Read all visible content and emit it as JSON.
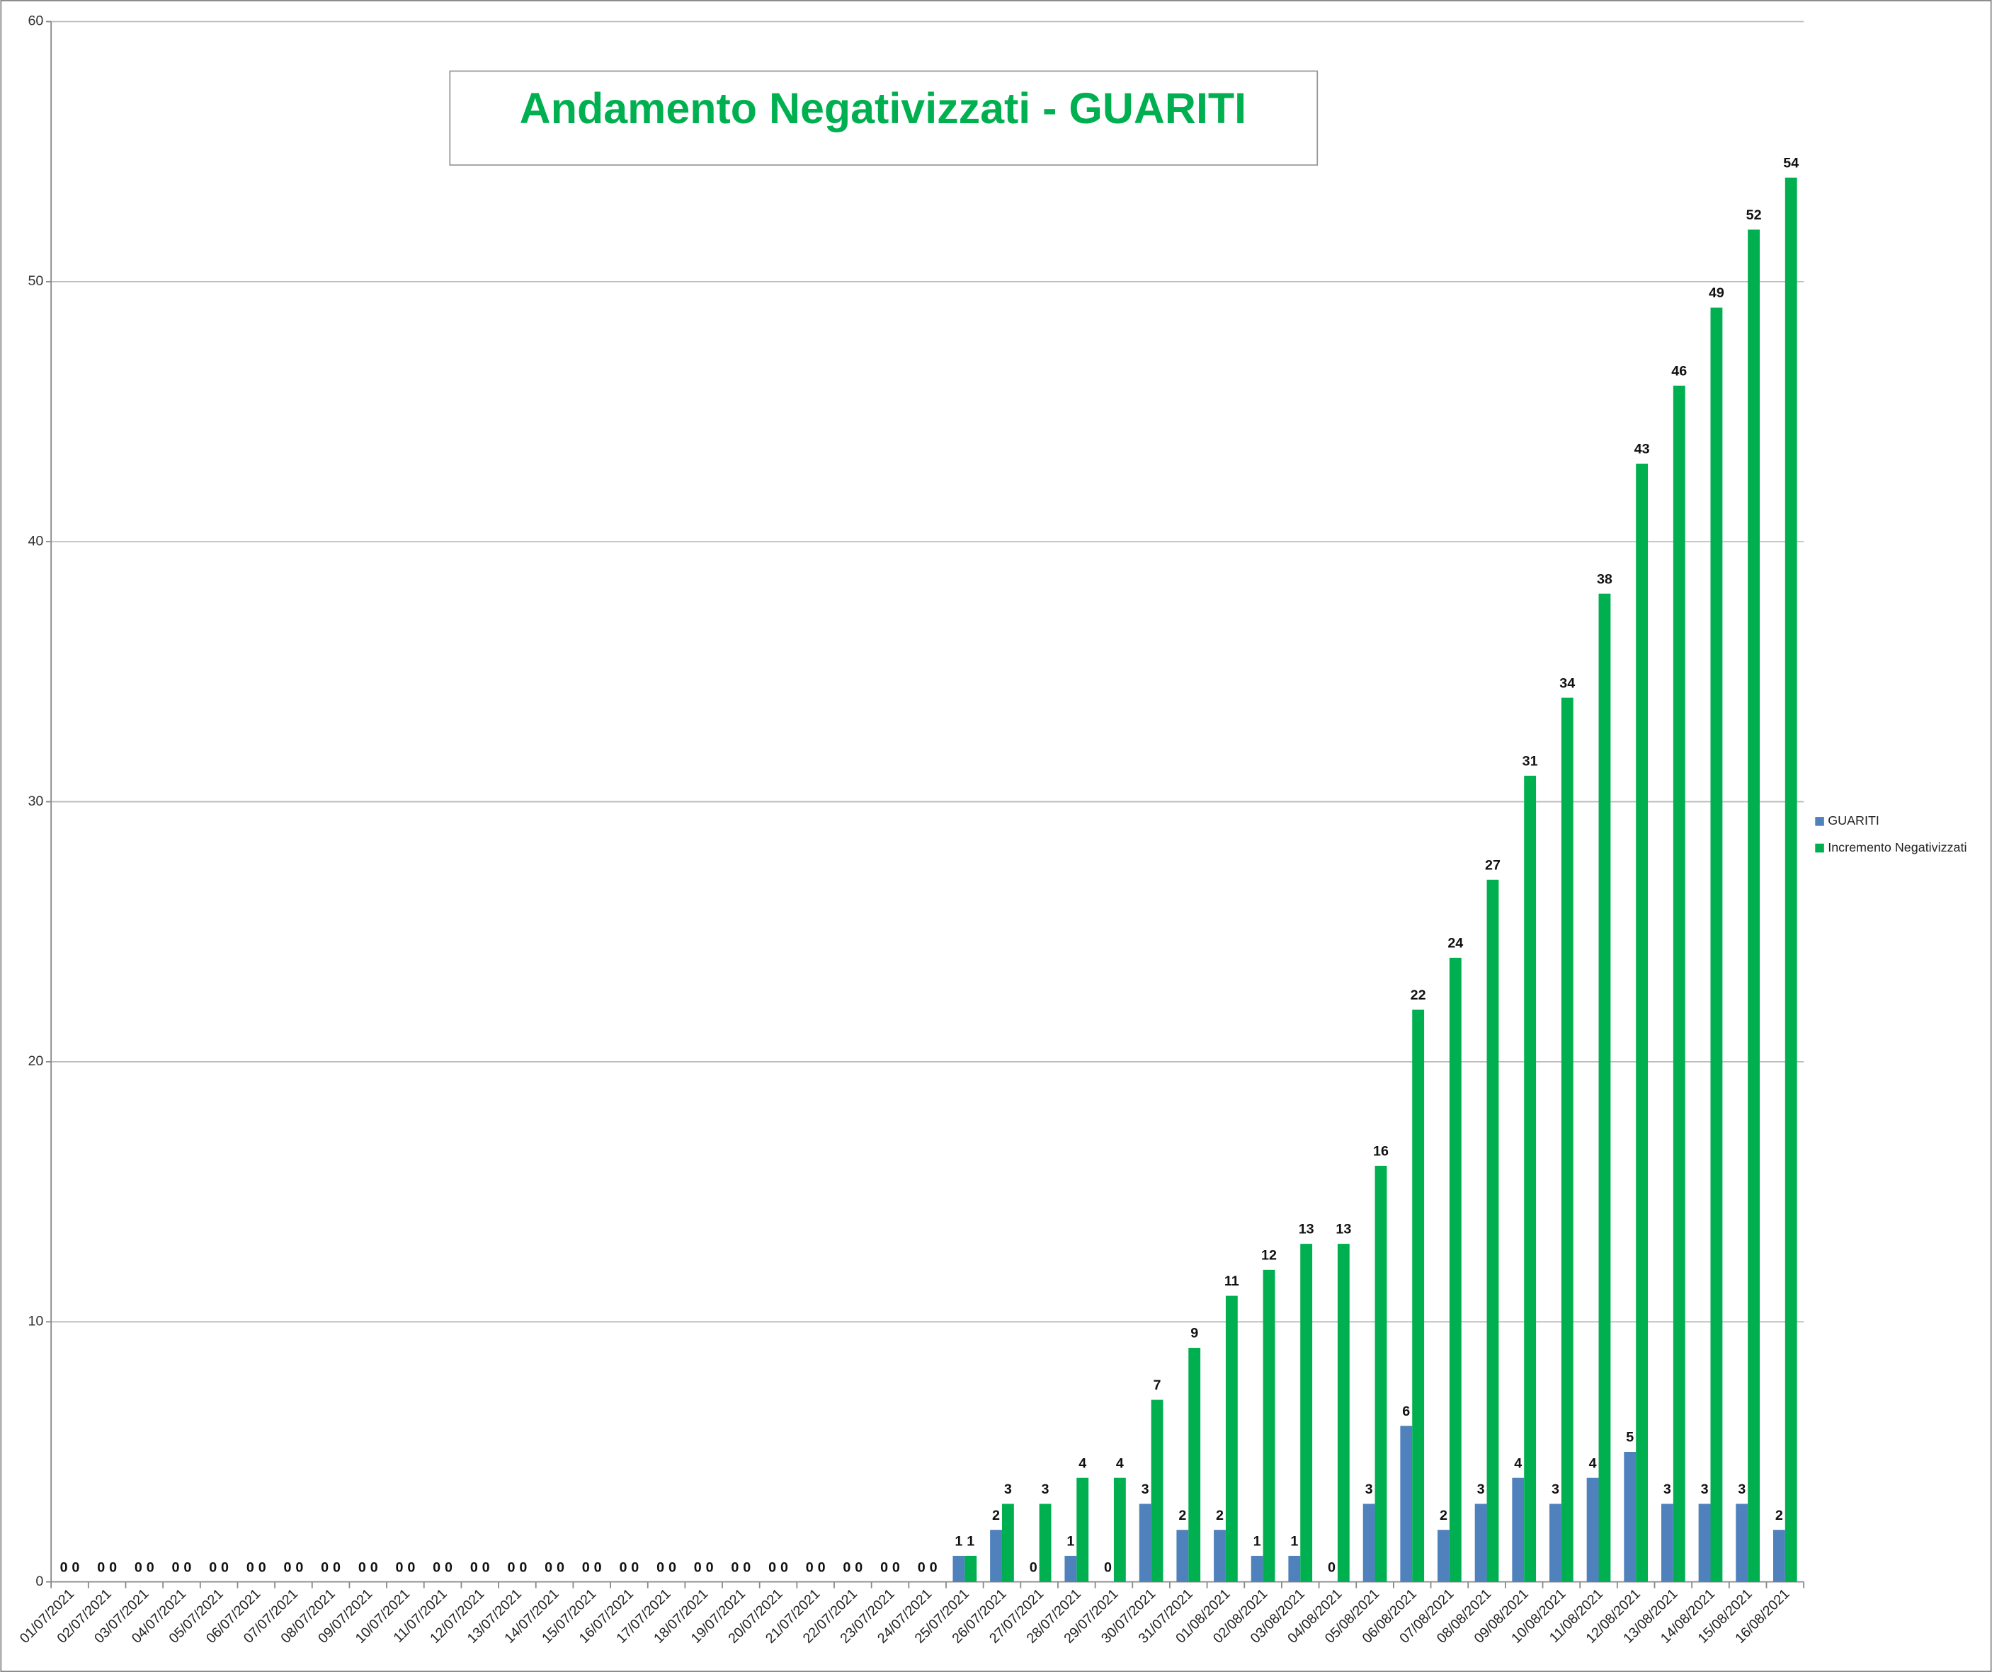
{
  "chart_data": {
    "type": "bar",
    "title": "Andamento Negativizzati - GUARITI",
    "categories": [
      "01/07/2021",
      "02/07/2021",
      "03/07/2021",
      "04/07/2021",
      "05/07/2021",
      "06/07/2021",
      "07/07/2021",
      "08/07/2021",
      "09/07/2021",
      "10/07/2021",
      "11/07/2021",
      "12/07/2021",
      "13/07/2021",
      "14/07/2021",
      "15/07/2021",
      "16/07/2021",
      "17/07/2021",
      "18/07/2021",
      "19/07/2021",
      "20/07/2021",
      "21/07/2021",
      "22/07/2021",
      "23/07/2021",
      "24/07/2021",
      "25/07/2021",
      "26/07/2021",
      "27/07/2021",
      "28/07/2021",
      "29/07/2021",
      "30/07/2021",
      "31/07/2021",
      "01/08/2021",
      "02/08/2021",
      "03/08/2021",
      "04/08/2021",
      "05/08/2021",
      "06/08/2021",
      "07/08/2021",
      "08/08/2021",
      "09/08/2021",
      "10/08/2021",
      "11/08/2021",
      "12/08/2021",
      "13/08/2021",
      "14/08/2021",
      "15/08/2021",
      "16/08/2021"
    ],
    "series": [
      {
        "name": "GUARITI",
        "color": "#4f81bd",
        "values": [
          0,
          0,
          0,
          0,
          0,
          0,
          0,
          0,
          0,
          0,
          0,
          0,
          0,
          0,
          0,
          0,
          0,
          0,
          0,
          0,
          0,
          0,
          0,
          0,
          1,
          2,
          0,
          1,
          0,
          3,
          2,
          2,
          1,
          1,
          0,
          3,
          6,
          2,
          3,
          4,
          3,
          4,
          5,
          3,
          3,
          3,
          2
        ]
      },
      {
        "name": "Incremento Negativizzati",
        "color": "#00b050",
        "values": [
          0,
          0,
          0,
          0,
          0,
          0,
          0,
          0,
          0,
          0,
          0,
          0,
          0,
          0,
          0,
          0,
          0,
          0,
          0,
          0,
          0,
          0,
          0,
          0,
          1,
          3,
          3,
          4,
          4,
          7,
          9,
          11,
          12,
          13,
          13,
          16,
          22,
          24,
          27,
          31,
          34,
          38,
          43,
          46,
          49,
          52,
          54
        ]
      }
    ],
    "ylim": [
      0,
      60
    ],
    "yticks": [
      0,
      10,
      20,
      30,
      40,
      50,
      60
    ],
    "grid": true,
    "legend": "right"
  }
}
